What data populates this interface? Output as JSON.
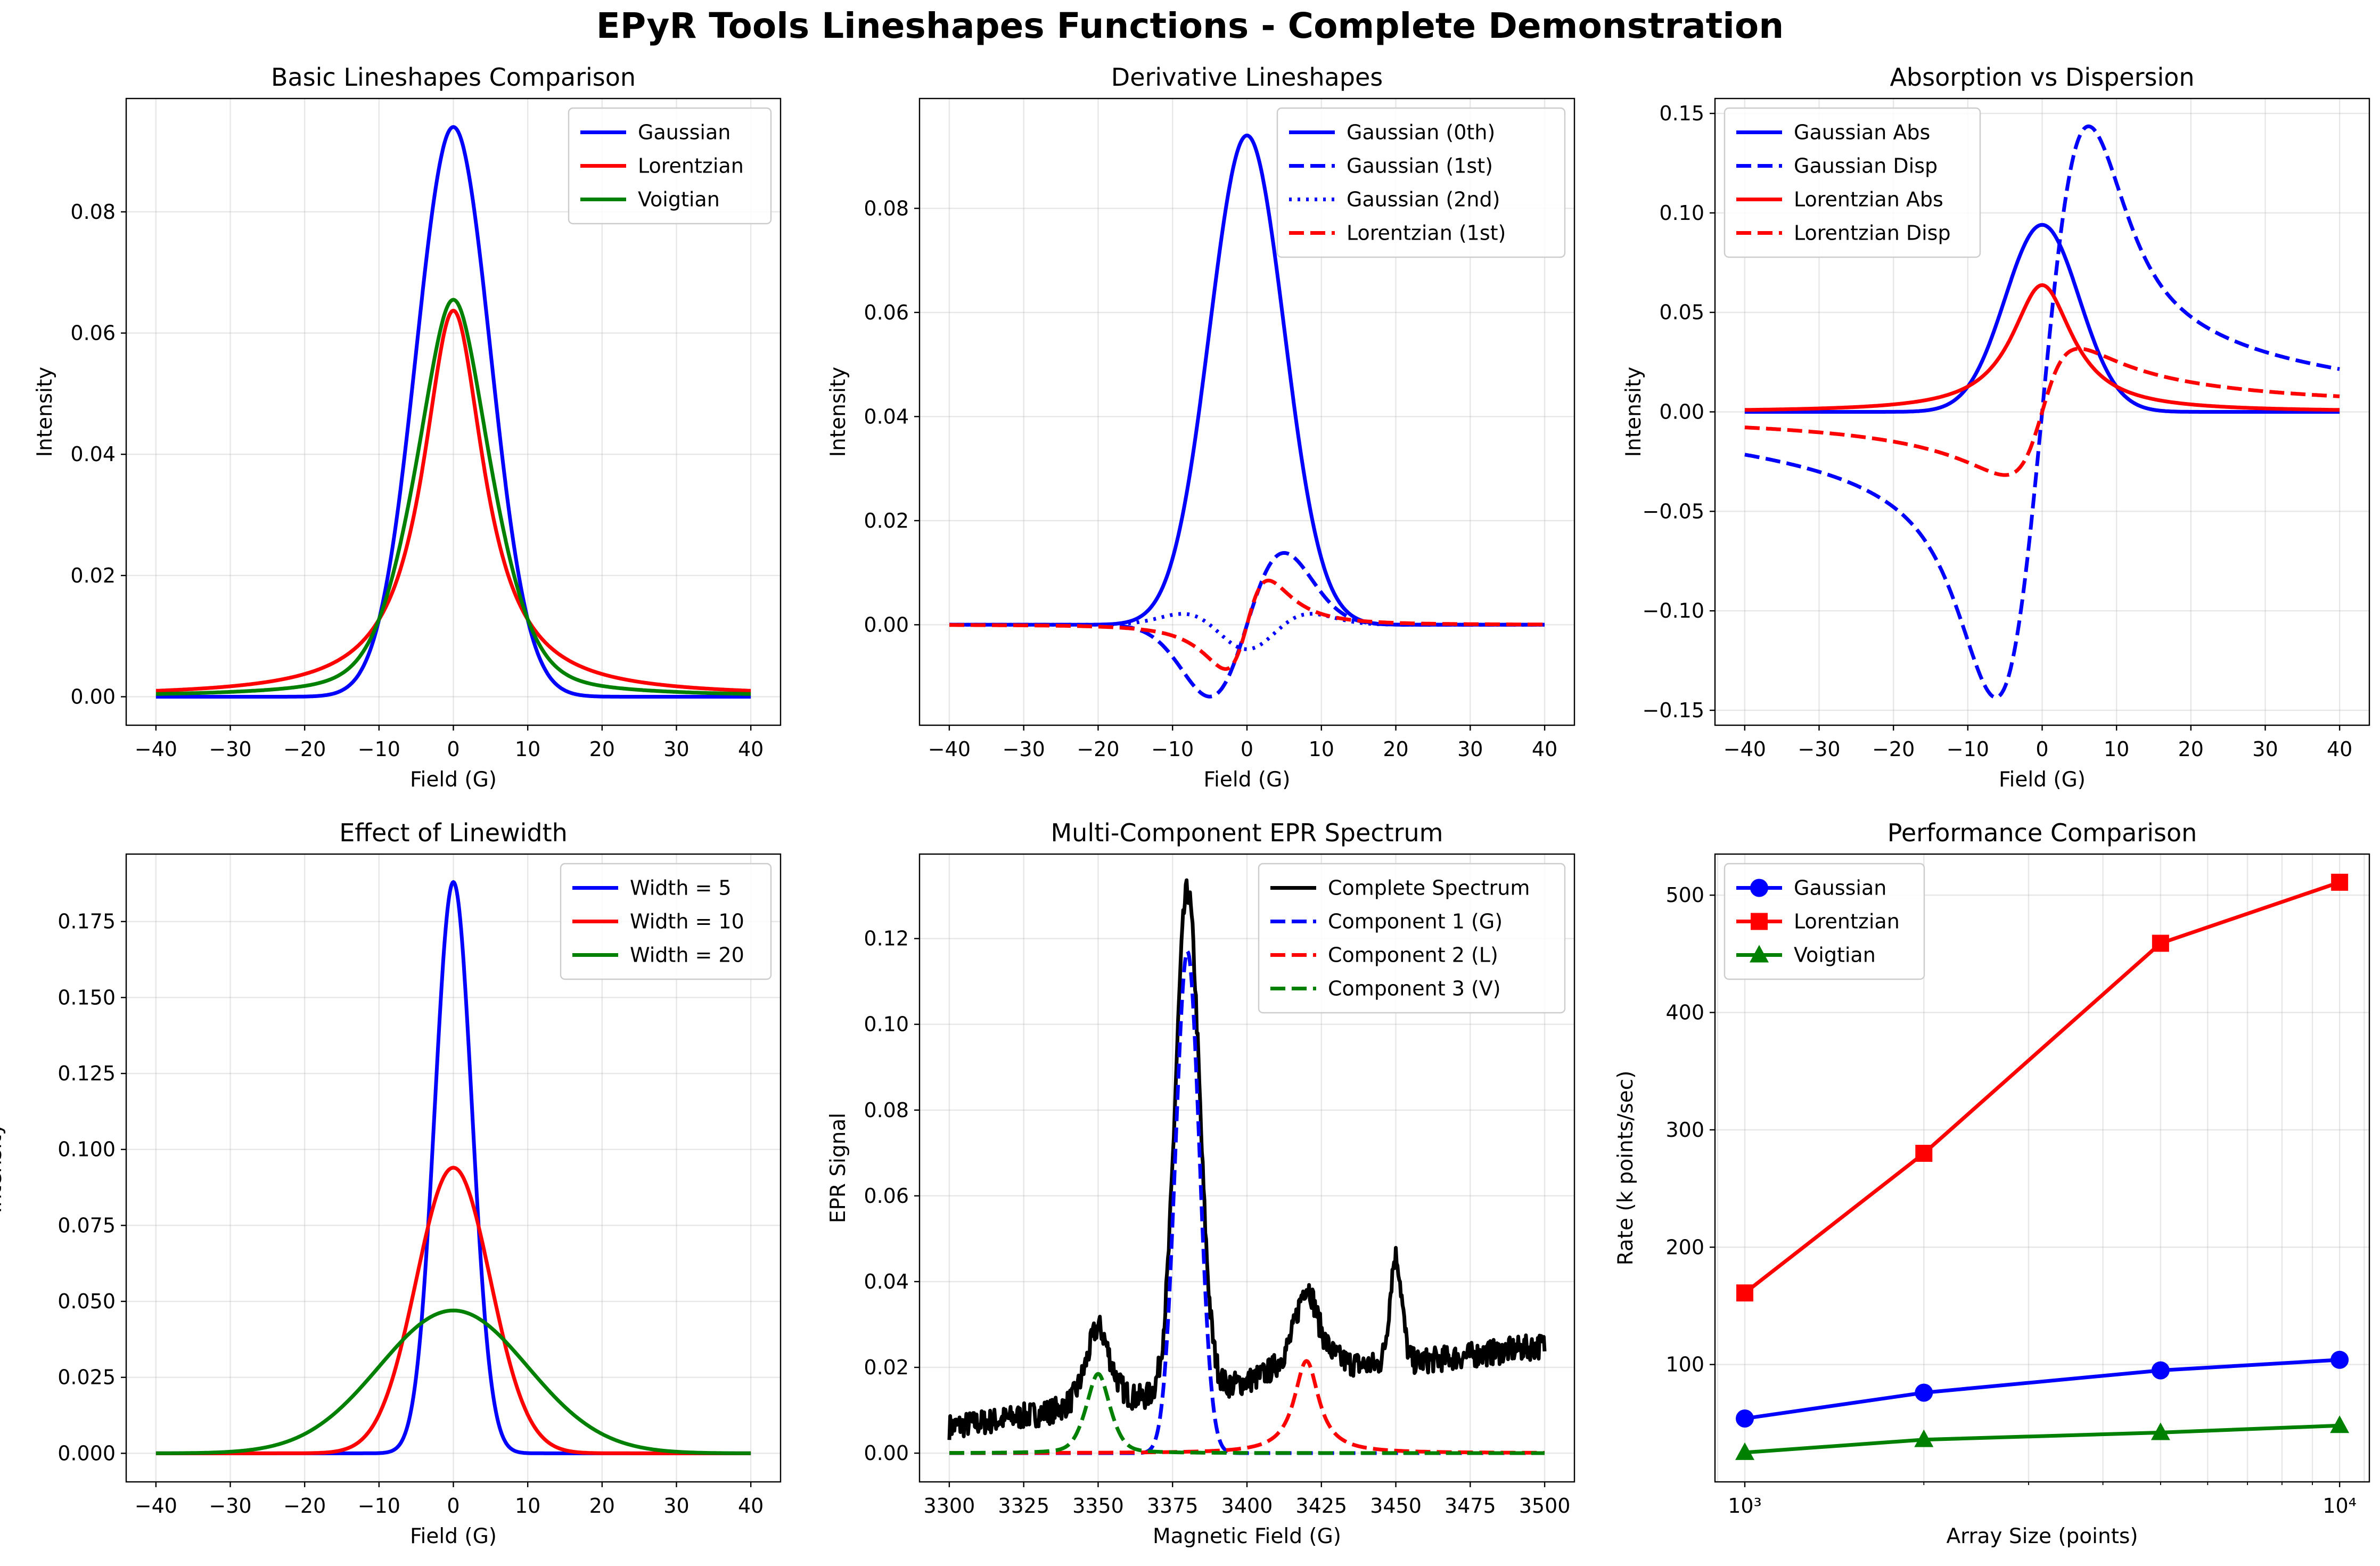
{
  "figure": {
    "title": "EPyR Tools Lineshapes Functions - Complete Demonstration"
  },
  "chart_data": [
    {
      "type": "line",
      "title": "Basic Lineshapes Comparison",
      "xlabel": "Field (G)",
      "ylabel": "Intensity",
      "xlim": [
        -44,
        44
      ],
      "ylim": [
        -0.0047,
        0.0987
      ],
      "xticks": [
        -40,
        -30,
        -20,
        -10,
        0,
        10,
        20,
        30,
        40
      ],
      "xtick_labels": [
        "−40",
        "−30",
        "−20",
        "−10",
        "0",
        "10",
        "20",
        "30",
        "40"
      ],
      "yticks": [
        0,
        0.02,
        0.04,
        0.06,
        0.08
      ],
      "ytick_labels": [
        "0.00",
        "0.02",
        "0.04",
        "0.06",
        "0.08"
      ],
      "grid": true,
      "legend": "upper right",
      "series": [
        {
          "name": "Gaussian",
          "color": "#0000ff",
          "dash": "solid",
          "kind": "gauss",
          "center": 0,
          "width": 10,
          "order": 0,
          "scale": 1
        },
        {
          "name": "Lorentzian",
          "color": "#ff0000",
          "dash": "solid",
          "kind": "lorentz",
          "center": 0,
          "width": 10,
          "order": 0,
          "scale": 1
        },
        {
          "name": "Voigtian",
          "color": "#008000",
          "dash": "solid",
          "kind": "voigt",
          "center": 0,
          "width": 10,
          "order": 0,
          "scale": 1
        }
      ]
    },
    {
      "type": "line",
      "title": "Derivative Lineshapes",
      "xlabel": "Field (G)",
      "ylabel": "Intensity",
      "xlim": [
        -44,
        44
      ],
      "ylim": [
        -0.0193,
        0.1011
      ],
      "xticks": [
        -40,
        -30,
        -20,
        -10,
        0,
        10,
        20,
        30,
        40
      ],
      "xtick_labels": [
        "−40",
        "−30",
        "−20",
        "−10",
        "0",
        "10",
        "20",
        "30",
        "40"
      ],
      "yticks": [
        0,
        0.02,
        0.04,
        0.06,
        0.08
      ],
      "ytick_labels": [
        "0.00",
        "0.02",
        "0.04",
        "0.06",
        "0.08"
      ],
      "grid": true,
      "legend": "upper right",
      "series": [
        {
          "name": "Gaussian (0th)",
          "color": "#0000ff",
          "dash": "solid",
          "kind": "gauss",
          "center": 0,
          "width": 10,
          "order": 0,
          "scale": 1
        },
        {
          "name": "Gaussian (1st)",
          "color": "#0000ff",
          "dash": "dashed",
          "kind": "gauss",
          "center": 0,
          "width": 10,
          "order": 1,
          "scale": 1
        },
        {
          "name": "Gaussian (2nd)",
          "color": "#0000ff",
          "dash": "dotted",
          "kind": "gauss",
          "center": 0,
          "width": 10,
          "order": 2,
          "scale": 1
        },
        {
          "name": "Lorentzian (1st)",
          "color": "#ff0000",
          "dash": "dashed",
          "kind": "lorentz",
          "center": 0,
          "width": 10,
          "order": 1,
          "scale": 1
        }
      ]
    },
    {
      "type": "line",
      "title": "Absorption vs Dispersion",
      "xlabel": "Field (G)",
      "ylabel": "Intensity",
      "xlim": [
        -44,
        44
      ],
      "ylim": [
        -0.1575,
        0.1575
      ],
      "xticks": [
        -40,
        -30,
        -20,
        -10,
        0,
        10,
        20,
        30,
        40
      ],
      "xtick_labels": [
        "−40",
        "−30",
        "−20",
        "−10",
        "0",
        "10",
        "20",
        "30",
        "40"
      ],
      "yticks": [
        -0.15,
        -0.1,
        -0.05,
        0,
        0.05,
        0.1,
        0.15
      ],
      "ytick_labels": [
        "−0.15",
        "−0.10",
        "−0.05",
        "0.00",
        "0.05",
        "0.10",
        "0.15"
      ],
      "grid": true,
      "legend": "upper left",
      "series": [
        {
          "name": "Gaussian Abs",
          "color": "#0000ff",
          "dash": "solid",
          "kind": "gauss",
          "center": 0,
          "width": 10,
          "order": 0,
          "scale": 1
        },
        {
          "name": "Gaussian Disp",
          "color": "#0000ff",
          "dash": "dashed",
          "kind": "gauss_disp",
          "center": 0,
          "width": 10,
          "order": 0,
          "scale": 1
        },
        {
          "name": "Lorentzian Abs",
          "color": "#ff0000",
          "dash": "solid",
          "kind": "lorentz",
          "center": 0,
          "width": 10,
          "order": 0,
          "scale": 1
        },
        {
          "name": "Lorentzian Disp",
          "color": "#ff0000",
          "dash": "dashed",
          "kind": "lorentz_disp",
          "center": 0,
          "width": 10,
          "order": 0,
          "scale": 1
        }
      ]
    },
    {
      "type": "line",
      "title": "Effect of Linewidth",
      "xlabel": "Field (G)",
      "ylabel": "Intensity",
      "xlim": [
        -44,
        44
      ],
      "ylim": [
        -0.0094,
        0.1972
      ],
      "xticks": [
        -40,
        -30,
        -20,
        -10,
        0,
        10,
        20,
        30,
        40
      ],
      "xtick_labels": [
        "−40",
        "−30",
        "−20",
        "−10",
        "0",
        "10",
        "20",
        "30",
        "40"
      ],
      "yticks": [
        0,
        0.025,
        0.05,
        0.075,
        0.1,
        0.125,
        0.15,
        0.175
      ],
      "ytick_labels": [
        "0.000",
        "0.025",
        "0.050",
        "0.075",
        "0.100",
        "0.125",
        "0.150",
        "0.175"
      ],
      "grid": true,
      "legend": "upper right",
      "series": [
        {
          "name": "Width = 5",
          "color": "#0000ff",
          "dash": "solid",
          "kind": "gauss",
          "center": 0,
          "width": 5,
          "order": 0,
          "scale": 1
        },
        {
          "name": "Width = 10",
          "color": "#ff0000",
          "dash": "solid",
          "kind": "gauss",
          "center": 0,
          "width": 10,
          "order": 0,
          "scale": 1
        },
        {
          "name": "Width = 20",
          "color": "#008000",
          "dash": "solid",
          "kind": "gauss",
          "center": 0,
          "width": 20,
          "order": 0,
          "scale": 1
        }
      ]
    },
    {
      "type": "line",
      "title": "Multi-Component EPR Spectrum",
      "xlabel": "Magnetic Field (G)",
      "ylabel": "EPR Signal",
      "xlim": [
        3290,
        3510
      ],
      "ylim": [
        -0.0067,
        0.1397
      ],
      "xticks": [
        3300,
        3325,
        3350,
        3375,
        3400,
        3425,
        3450,
        3475,
        3500
      ],
      "xtick_labels": [
        "3300",
        "3325",
        "3350",
        "3375",
        "3400",
        "3425",
        "3450",
        "3475",
        "3500"
      ],
      "yticks": [
        0,
        0.02,
        0.04,
        0.06,
        0.08,
        0.1,
        0.12
      ],
      "ytick_labels": [
        "0.00",
        "0.02",
        "0.04",
        "0.06",
        "0.08",
        "0.10",
        "0.12"
      ],
      "grid": true,
      "legend": "upper right",
      "spectrum": {
        "baseline_start": 0.006,
        "baseline_end": 0.025,
        "noise": 0.003,
        "extra_peak": {
          "center": 3450,
          "width": 4,
          "height": 0.025
        }
      },
      "series": [
        {
          "name": "Complete Spectrum",
          "color": "#000000",
          "dash": "solid",
          "kind": "total",
          "width": 10
        },
        {
          "name": "Component 1 (G)",
          "color": "#0000ff",
          "dash": "dashed",
          "kind": "gauss",
          "center": 3380,
          "width": 8,
          "order": 0,
          "peak": 0.117
        },
        {
          "name": "Component 2 (L)",
          "color": "#ff0000",
          "dash": "dashed",
          "kind": "lorentz",
          "center": 3420,
          "width": 10,
          "order": 0,
          "peak": 0.0215
        },
        {
          "name": "Component 3 (V)",
          "color": "#008000",
          "dash": "dashed",
          "kind": "voigt",
          "center": 3350,
          "width": 8,
          "order": 0,
          "peak": 0.0185
        }
      ]
    },
    {
      "type": "line",
      "title": "Performance Comparison",
      "xlabel": "Array Size (points)",
      "ylabel": "Rate (k points/sec)",
      "xscale": "log",
      "xlim": [
        891,
        11220
      ],
      "ylim": [
        0,
        535
      ],
      "xticks": [
        1000,
        10000
      ],
      "xtick_labels": [
        "10³",
        "10⁴"
      ],
      "yticks": [
        100,
        200,
        300,
        400,
        500
      ],
      "ytick_labels": [
        "100",
        "200",
        "300",
        "400",
        "500"
      ],
      "grid": true,
      "legend": "upper left",
      "x": [
        1000,
        2000,
        5000,
        10000
      ],
      "series": [
        {
          "name": "Gaussian",
          "color": "#0000ff",
          "marker": "circle",
          "values": [
            54,
            76,
            95,
            104
          ]
        },
        {
          "name": "Lorentzian",
          "color": "#ff0000",
          "marker": "square",
          "values": [
            161,
            280,
            459,
            511
          ]
        },
        {
          "name": "Voigtian",
          "color": "#008000",
          "marker": "triangle",
          "values": [
            25,
            36,
            42,
            48
          ]
        }
      ]
    }
  ]
}
